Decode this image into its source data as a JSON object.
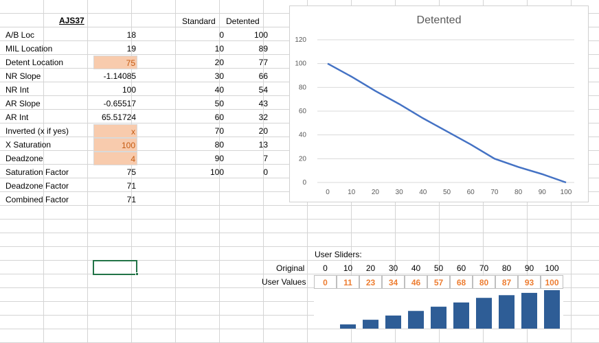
{
  "sheet": {
    "title": "AJS37",
    "rows": [
      {
        "label": "A/B Loc",
        "value": "18",
        "highlight": false
      },
      {
        "label": "MIL Location",
        "value": "19",
        "highlight": false
      },
      {
        "label": "Detent Location",
        "value": "75",
        "highlight": true
      },
      {
        "label": "NR Slope",
        "value": "-1.14085",
        "highlight": false
      },
      {
        "label": "NR Int",
        "value": "100",
        "highlight": false
      },
      {
        "label": "AR Slope",
        "value": "-0.65517",
        "highlight": false
      },
      {
        "label": "AR Int",
        "value": "65.51724",
        "highlight": false
      },
      {
        "label": "Inverted (x if yes)",
        "value": "x",
        "highlight": true
      },
      {
        "label": "X Saturation",
        "value": "100",
        "highlight": true
      },
      {
        "label": "Deadzone",
        "value": "4",
        "highlight": true
      },
      {
        "label": "Saturation Factor",
        "value": "75",
        "highlight": false
      },
      {
        "label": "Deadzone Factor",
        "value": "71",
        "highlight": false
      },
      {
        "label": "Combined Factor",
        "value": "71",
        "highlight": false
      }
    ],
    "table_headers": {
      "standard": "Standard",
      "detented": "Detented"
    },
    "table_rows": [
      [
        "0",
        "100"
      ],
      [
        "10",
        "89"
      ],
      [
        "20",
        "77"
      ],
      [
        "30",
        "66"
      ],
      [
        "40",
        "54"
      ],
      [
        "50",
        "43"
      ],
      [
        "60",
        "32"
      ],
      [
        "70",
        "20"
      ],
      [
        "80",
        "13"
      ],
      [
        "90",
        "7"
      ],
      [
        "100",
        "0"
      ]
    ],
    "user_sliders": {
      "title": "User Sliders:",
      "original_label": "Original",
      "user_values_label": "User Values",
      "original": [
        "0",
        "10",
        "20",
        "30",
        "40",
        "50",
        "60",
        "70",
        "80",
        "90",
        "100"
      ],
      "user_values": [
        "0",
        "11",
        "23",
        "34",
        "46",
        "57",
        "68",
        "80",
        "87",
        "93",
        "100"
      ]
    }
  },
  "colors": {
    "highlight_fill": "#f8cbad",
    "highlight_text": "#c55a11",
    "line": "#4472c4",
    "bar": "#2e5d96",
    "user_value_text": "#ed7d31"
  },
  "chart_data": [
    {
      "type": "line",
      "title": "Detented",
      "x": [
        0,
        10,
        20,
        30,
        40,
        50,
        60,
        70,
        80,
        90,
        100
      ],
      "series": [
        {
          "values": [
            100,
            89,
            77,
            66,
            54,
            43,
            32,
            20,
            13,
            7,
            0
          ]
        }
      ],
      "ylim": [
        0,
        120
      ],
      "yticks": [
        0,
        20,
        40,
        60,
        80,
        100,
        120
      ],
      "grid": true
    },
    {
      "type": "bar",
      "categories": [
        "0",
        "10",
        "20",
        "30",
        "40",
        "50",
        "60",
        "70",
        "80",
        "90",
        "100"
      ],
      "values": [
        0,
        11,
        23,
        34,
        46,
        57,
        68,
        80,
        87,
        93,
        100
      ]
    }
  ]
}
